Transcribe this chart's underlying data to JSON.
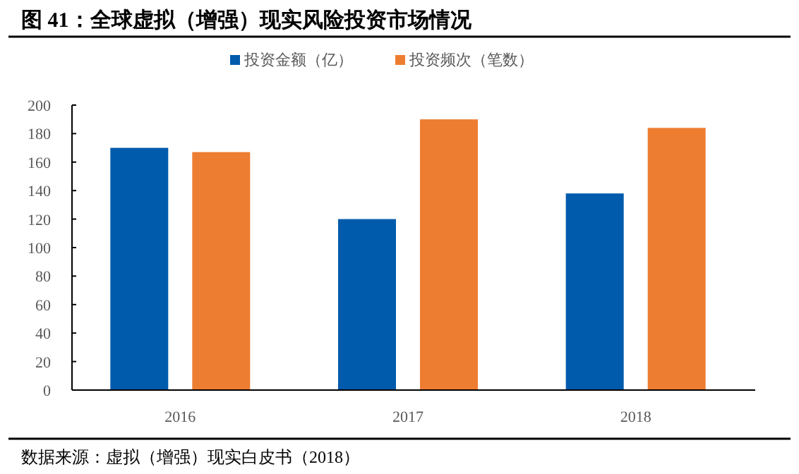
{
  "chart_data": {
    "type": "bar",
    "title": "图 41：全球虚拟（增强）现实风险投资市场情况",
    "categories": [
      "2016",
      "2017",
      "2018"
    ],
    "series": [
      {
        "name": "投资金额（亿）",
        "color": "#005bac",
        "values": [
          170,
          120,
          138
        ]
      },
      {
        "name": "投资频次（笔数）",
        "color": "#ed7d31",
        "values": [
          167,
          190,
          184
        ]
      }
    ],
    "ylim": [
      0,
      200
    ],
    "yticks": [
      0,
      20,
      40,
      60,
      80,
      100,
      120,
      140,
      160,
      180,
      200
    ],
    "grid": false,
    "legend": "top",
    "annotations": [
      "数据来源：虚拟（增强）现实白皮书（2018）"
    ]
  }
}
